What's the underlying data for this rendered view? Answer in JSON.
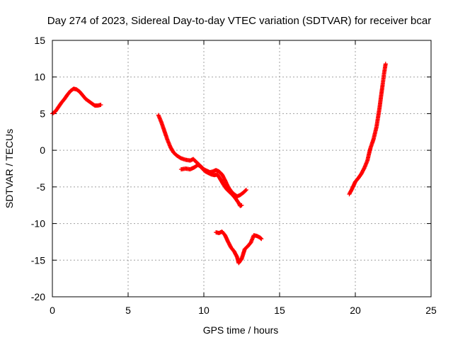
{
  "chart_data": {
    "type": "scatter",
    "title": "Day 274 of 2023, Sidereal Day-to-day VTEC variation (SDTVAR) for receiver bcar",
    "xlabel": "GPS time / hours",
    "ylabel": "SDTVAR / TECUs",
    "xlim": [
      0,
      25
    ],
    "ylim": [
      -20,
      15
    ],
    "xticks": [
      0,
      5,
      10,
      15,
      20,
      25
    ],
    "yticks": [
      -20,
      -15,
      -10,
      -5,
      0,
      5,
      10,
      15
    ],
    "xtick_labels": [
      "0",
      "5",
      "10",
      "15",
      "20",
      "25"
    ],
    "ytick_labels": [
      "-20",
      "-15",
      "-10",
      "-5",
      "0",
      "5",
      "10",
      "15"
    ],
    "grid": true,
    "marker": "plus",
    "color": "#ff0000",
    "segments": [
      {
        "points": [
          [
            0.0,
            5.0
          ],
          [
            0.2,
            5.3
          ],
          [
            0.4,
            5.9
          ],
          [
            0.6,
            6.5
          ],
          [
            0.8,
            7.0
          ],
          [
            1.0,
            7.6
          ],
          [
            1.2,
            8.1
          ],
          [
            1.4,
            8.4
          ],
          [
            1.6,
            8.3
          ],
          [
            1.8,
            8.0
          ],
          [
            2.0,
            7.5
          ],
          [
            2.2,
            7.0
          ],
          [
            2.4,
            6.7
          ],
          [
            2.6,
            6.4
          ],
          [
            2.8,
            6.1
          ],
          [
            3.0,
            6.1
          ],
          [
            3.2,
            6.2
          ]
        ]
      },
      {
        "points": [
          [
            7.0,
            4.8
          ],
          [
            7.2,
            3.8
          ],
          [
            7.4,
            2.6
          ],
          [
            7.6,
            1.4
          ],
          [
            7.8,
            0.4
          ],
          [
            8.0,
            -0.3
          ],
          [
            8.2,
            -0.7
          ],
          [
            8.5,
            -1.1
          ],
          [
            8.8,
            -1.3
          ],
          [
            9.1,
            -1.4
          ],
          [
            9.3,
            -1.2
          ],
          [
            9.5,
            -1.6
          ],
          [
            9.7,
            -2.0
          ],
          [
            9.9,
            -2.5
          ],
          [
            10.1,
            -2.9
          ],
          [
            10.3,
            -3.1
          ],
          [
            10.5,
            -3.3
          ],
          [
            10.7,
            -3.4
          ],
          [
            10.9,
            -3.3
          ],
          [
            11.1,
            -4.0
          ],
          [
            11.3,
            -4.7
          ],
          [
            11.5,
            -5.3
          ],
          [
            11.7,
            -5.7
          ],
          [
            11.9,
            -6.1
          ],
          [
            12.1,
            -6.6
          ],
          [
            12.3,
            -7.2
          ],
          [
            12.4,
            -7.6
          ],
          [
            12.5,
            -7.5
          ]
        ]
      },
      {
        "points": [
          [
            8.5,
            -2.6
          ],
          [
            8.8,
            -2.5
          ],
          [
            9.1,
            -2.6
          ],
          [
            9.4,
            -2.3
          ],
          [
            9.6,
            -2.0
          ],
          [
            9.8,
            -2.2
          ],
          [
            10.0,
            -2.6
          ],
          [
            10.2,
            -2.8
          ],
          [
            10.4,
            -3.0
          ],
          [
            10.6,
            -2.9
          ],
          [
            10.8,
            -2.7
          ],
          [
            11.0,
            -2.9
          ],
          [
            11.2,
            -3.3
          ],
          [
            11.4,
            -4.1
          ],
          [
            11.6,
            -5.0
          ],
          [
            11.8,
            -5.6
          ],
          [
            12.0,
            -6.0
          ],
          [
            12.2,
            -6.3
          ],
          [
            12.4,
            -6.1
          ],
          [
            12.6,
            -5.8
          ],
          [
            12.8,
            -5.4
          ]
        ]
      },
      {
        "points": [
          [
            10.8,
            -11.2
          ],
          [
            11.0,
            -11.3
          ],
          [
            11.2,
            -11.1
          ],
          [
            11.4,
            -11.6
          ],
          [
            11.6,
            -12.5
          ],
          [
            11.8,
            -13.3
          ],
          [
            12.0,
            -13.8
          ],
          [
            12.2,
            -14.6
          ],
          [
            12.3,
            -15.4
          ],
          [
            12.5,
            -14.8
          ],
          [
            12.7,
            -13.5
          ],
          [
            12.9,
            -13.1
          ],
          [
            13.1,
            -12.6
          ],
          [
            13.3,
            -11.6
          ],
          [
            13.5,
            -11.7
          ],
          [
            13.7,
            -11.9
          ],
          [
            13.8,
            -12.1
          ]
        ]
      },
      {
        "points": [
          [
            19.6,
            -6.0
          ],
          [
            19.8,
            -5.2
          ],
          [
            20.0,
            -4.3
          ],
          [
            20.2,
            -3.8
          ],
          [
            20.4,
            -3.2
          ],
          [
            20.6,
            -2.4
          ],
          [
            20.8,
            -1.4
          ],
          [
            20.9,
            -0.5
          ],
          [
            21.0,
            0.3
          ],
          [
            21.2,
            1.5
          ],
          [
            21.4,
            3.2
          ],
          [
            21.5,
            4.5
          ],
          [
            21.6,
            5.8
          ],
          [
            21.7,
            7.4
          ],
          [
            21.8,
            8.9
          ],
          [
            21.9,
            10.5
          ],
          [
            22.0,
            11.8
          ]
        ]
      }
    ]
  }
}
